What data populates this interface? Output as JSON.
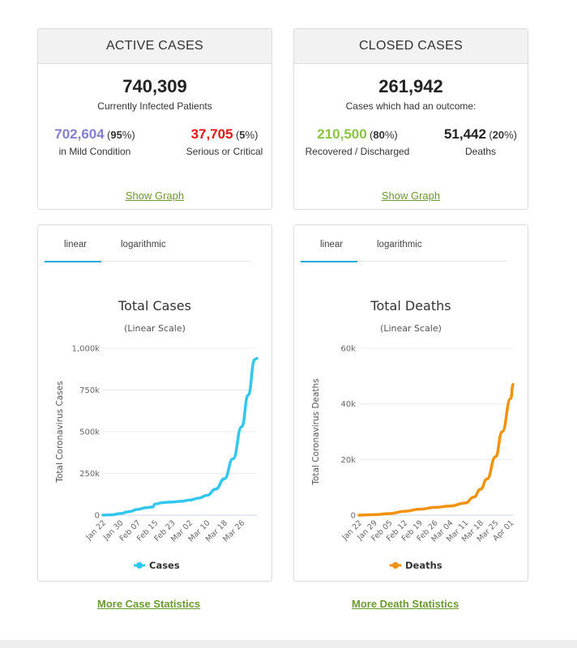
{
  "active": {
    "header": "ACTIVE CASES",
    "total": "740,309",
    "total_label": "Currently Infected Patients",
    "mild_value": "702,604",
    "mild_pct": "95",
    "mild_label": "in Mild Condition",
    "serious_value": "37,705",
    "serious_pct": "5",
    "serious_label": "Serious or Critical",
    "show_graph": "Show Graph",
    "colors": {
      "mild": "#8080cf",
      "serious": "#e81212"
    }
  },
  "closed": {
    "header": "CLOSED CASES",
    "total": "261,942",
    "total_label": "Cases which had an outcome:",
    "recovered_value": "210,500",
    "recovered_pct": "80",
    "recovered_label": "Recovered / Discharged",
    "deaths_value": "51,442",
    "deaths_pct": "20",
    "deaths_label": "Deaths",
    "show_graph": "Show Graph",
    "colors": {
      "recovered": "#8ac53f",
      "deaths": "#222222"
    }
  },
  "tabs": {
    "linear": "linear",
    "log": "logarithmic",
    "active_color": "#27a9d8"
  },
  "links": {
    "more_cases": "More Case Statistics",
    "more_deaths": "More Death Statistics"
  },
  "chart_data": [
    {
      "type": "line",
      "title": "Total Cases",
      "subtitle": "(Linear Scale)",
      "ylabel": "Total Coronavirus Cases",
      "xlabel": "",
      "ylim": [
        0,
        1000000
      ],
      "yticks": [
        0,
        250000,
        500000,
        750000,
        1000000
      ],
      "ytick_labels": [
        "0",
        "250k",
        "500k",
        "750k",
        "1,000k"
      ],
      "xtick_labels": [
        "Jan 22",
        "Jan 30",
        "Feb 07",
        "Feb 15",
        "Feb 23",
        "Mar 02",
        "Mar 10",
        "Mar 18",
        "Mar 26"
      ],
      "grid": true,
      "legend": "bottom",
      "series": [
        {
          "name": "Cases",
          "color": "#33c7ef",
          "x": [
            "Jan 22",
            "Jan 26",
            "Jan 30",
            "Feb 03",
            "Feb 07",
            "Feb 11",
            "Feb 14",
            "Feb 15",
            "Feb 19",
            "Feb 23",
            "Feb 27",
            "Mar 02",
            "Mar 06",
            "Mar 10",
            "Mar 14",
            "Mar 18",
            "Mar 22",
            "Mar 26",
            "Mar 29",
            "Apr 01",
            "Apr 02"
          ],
          "values": [
            580,
            2100,
            9900,
            20600,
            34500,
            45200,
            49000,
            67000,
            76000,
            79000,
            83000,
            90300,
            101800,
            119000,
            156000,
            218000,
            338000,
            530000,
            720000,
            932000,
            940000
          ]
        }
      ]
    },
    {
      "type": "line",
      "title": "Total Deaths",
      "subtitle": "(Linear Scale)",
      "ylabel": "Total Coronavirus Deaths",
      "xlabel": "",
      "ylim": [
        0,
        60000
      ],
      "yticks": [
        0,
        20000,
        40000,
        60000
      ],
      "ytick_labels": [
        "0",
        "20k",
        "40k",
        "60k"
      ],
      "xtick_labels": [
        "Jan 22",
        "Jan 29",
        "Feb 05",
        "Feb 12",
        "Feb 19",
        "Feb 26",
        "Mar 04",
        "Mar 11",
        "Mar 18",
        "Mar 25",
        "Apr 01"
      ],
      "grid": true,
      "legend": "bottom",
      "series": [
        {
          "name": "Deaths",
          "color": "#f2920c",
          "x": [
            "Jan 22",
            "Jan 29",
            "Feb 05",
            "Feb 12",
            "Feb 19",
            "Feb 26",
            "Mar 04",
            "Mar 11",
            "Mar 15",
            "Mar 18",
            "Mar 21",
            "Mar 25",
            "Mar 28",
            "Apr 01",
            "Apr 02"
          ],
          "values": [
            17,
            170,
            564,
            1370,
            2130,
            2800,
            3290,
            4380,
            6500,
            9300,
            13000,
            21000,
            30000,
            42000,
            47000
          ]
        }
      ]
    }
  ]
}
